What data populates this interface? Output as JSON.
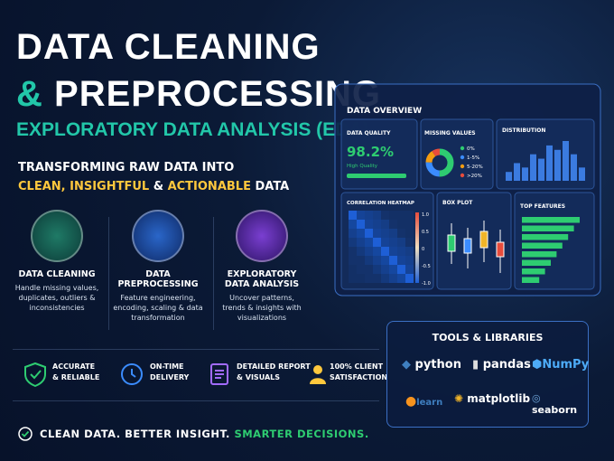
{
  "title": {
    "line1": "DATA CLEANING",
    "ampersand": "&",
    "line2": "PREPROCESSING"
  },
  "subtitle": "EXPLORATORY DATA ANALYSIS (EDA)",
  "tagline": {
    "line1": "TRANSFORMING RAW DATA INTO",
    "highlight1": "CLEAN, INSIGHTFUL",
    "joiner": "&",
    "highlight2": "ACTIONABLE",
    "end": "DATA"
  },
  "services": [
    {
      "title": "DATA CLEANING",
      "description": "Handle missing values, duplicates, outliers & inconsistencies"
    },
    {
      "title": "DATA PREPROCESSING",
      "description": "Feature engineering, encoding, scaling & data transformation"
    },
    {
      "title": "EXPLORATORY DATA ANALYSIS",
      "description": "Uncover patterns, trends & insights with visualizations"
    }
  ],
  "dashboard": {
    "title": "DATA OVERVIEW",
    "data_quality": {
      "label": "DATA QUALITY",
      "value": "98.2%",
      "caption": "High Quality"
    },
    "missing_values": {
      "label": "MISSING VALUES",
      "legend": [
        "0%",
        "1-5%",
        "5-20%",
        ">20%"
      ],
      "shares": [
        50,
        25,
        15,
        10
      ]
    },
    "distribution": {
      "label": "DISTRIBUTION",
      "values": [
        2,
        4,
        3,
        6,
        5,
        8,
        7,
        9,
        6,
        3
      ]
    },
    "heatmap": {
      "label": "CORRELATION HEATMAP",
      "scale": [
        "1.0",
        "0.5",
        "0",
        "-0.5",
        "-1.0"
      ]
    },
    "box_plot": {
      "label": "BOX PLOT"
    },
    "top_features": {
      "label": "TOP FEATURES",
      "values": [
        10,
        9,
        8,
        7,
        6,
        5,
        4,
        3
      ]
    }
  },
  "benefits": [
    {
      "line1": "ACCURATE",
      "line2": "& RELIABLE"
    },
    {
      "line1": "ON-TIME",
      "line2": "DELIVERY"
    },
    {
      "line1": "DETAILED REPORT",
      "line2": "& VISUALS"
    },
    {
      "line1": "100% CLIENT",
      "line2": "SATISFACTION"
    }
  ],
  "tools": {
    "title": "TOOLS & LIBRARIES",
    "items": [
      "python",
      "pandas",
      "NumPy",
      "learn",
      "matplotlib",
      "seaborn"
    ]
  },
  "footer": {
    "text": "CLEAN DATA. BETTER INSIGHT.",
    "highlight": "SMARTER DECISIONS."
  }
}
